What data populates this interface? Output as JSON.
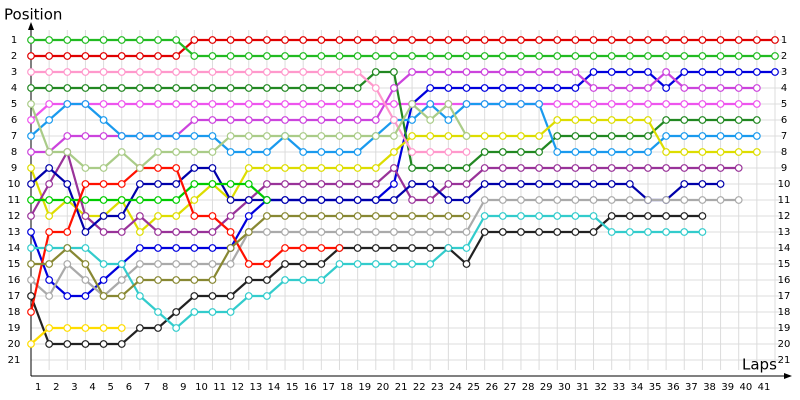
{
  "chart_data": {
    "type": "lap-chart",
    "ylabel": "Position",
    "xlabel": "Laps",
    "categories": [
      null,
      "1",
      "2",
      "3",
      "4",
      "5",
      "6",
      "7",
      "8",
      "9",
      "10",
      "11",
      "12",
      "13",
      "14",
      "15",
      "16",
      "17",
      "18",
      "19",
      "20",
      "21",
      "22",
      "23",
      "24",
      "25",
      "26",
      "27",
      "28",
      "29",
      "30",
      "31",
      "32",
      "33",
      "34",
      "35",
      "36",
      "37",
      "38",
      "39",
      "40",
      "41"
    ],
    "ylim": [
      1,
      21
    ],
    "invert_y": true,
    "yticks": [
      1,
      2,
      3,
      4,
      5,
      6,
      7,
      8,
      9,
      10,
      11,
      12,
      13,
      14,
      15,
      16,
      17,
      18,
      19,
      20,
      21
    ],
    "grid": true,
    "series": [
      {
        "color": "#e00000",
        "values": [
          2,
          2,
          2,
          2,
          2,
          2,
          2,
          2,
          2,
          1,
          1,
          1,
          1,
          1,
          1,
          1,
          1,
          1,
          1,
          1,
          1,
          1,
          1,
          1,
          1,
          1,
          1,
          1,
          1,
          1,
          1,
          1,
          1,
          1,
          1,
          1,
          1,
          1,
          1,
          1,
          1,
          1
        ]
      },
      {
        "color": "#22bb22",
        "values": [
          1,
          1,
          1,
          1,
          1,
          1,
          1,
          1,
          1,
          2,
          2,
          2,
          2,
          2,
          2,
          2,
          2,
          2,
          2,
          2,
          2,
          2,
          2,
          2,
          2,
          2,
          2,
          2,
          2,
          2,
          2,
          2,
          2,
          2,
          2,
          2,
          2,
          2,
          2,
          2,
          2,
          2
        ]
      },
      {
        "color": "#0000dd",
        "values": [
          13,
          16,
          17,
          17,
          16,
          15,
          14,
          14,
          14,
          14,
          14,
          14,
          12,
          11,
          11,
          11,
          11,
          11,
          11,
          11,
          10,
          5,
          4,
          4,
          4,
          4,
          4,
          4,
          4,
          4,
          4,
          3,
          3,
          3,
          3,
          4,
          3,
          3,
          3,
          3,
          3,
          3
        ]
      },
      {
        "color": "#cc44dd",
        "values": [
          8,
          8,
          7,
          7,
          7,
          7,
          7,
          7,
          7,
          6,
          6,
          6,
          6,
          6,
          6,
          6,
          6,
          6,
          6,
          6,
          4,
          3,
          3,
          3,
          3,
          3,
          3,
          3,
          3,
          3,
          3,
          4,
          4,
          4,
          4,
          3,
          4,
          4,
          4,
          4,
          4,
          null
        ]
      },
      {
        "color": "#ee55ee",
        "values": [
          6,
          5,
          5,
          5,
          5,
          5,
          5,
          5,
          5,
          5,
          5,
          5,
          5,
          5,
          5,
          5,
          5,
          5,
          5,
          5,
          5,
          5,
          5,
          5,
          5,
          5,
          5,
          5,
          5,
          5,
          5,
          5,
          5,
          5,
          5,
          5,
          5,
          5,
          5,
          5,
          5,
          null
        ]
      },
      {
        "color": "#228822",
        "values": [
          4,
          4,
          4,
          4,
          4,
          4,
          4,
          4,
          4,
          4,
          4,
          4,
          4,
          4,
          4,
          4,
          4,
          4,
          4,
          3,
          3,
          9,
          9,
          9,
          9,
          8,
          8,
          8,
          8,
          7,
          7,
          7,
          7,
          7,
          7,
          6,
          6,
          6,
          6,
          6,
          6,
          null
        ]
      },
      {
        "color": "#1a9aee",
        "values": [
          7,
          6,
          5,
          5,
          6,
          7,
          7,
          7,
          7,
          7,
          7,
          8,
          8,
          8,
          7,
          8,
          8,
          8,
          8,
          7,
          6,
          6,
          5,
          6,
          5,
          5,
          5,
          5,
          5,
          8,
          8,
          8,
          8,
          8,
          8,
          7,
          7,
          7,
          7,
          7,
          7,
          null
        ]
      },
      {
        "color": "#dddd00",
        "values": [
          9,
          12,
          11,
          12,
          12,
          11,
          13,
          12,
          12,
          11,
          10,
          11,
          9,
          9,
          9,
          9,
          9,
          9,
          9,
          9,
          8,
          7,
          7,
          7,
          7,
          7,
          7,
          7,
          7,
          6,
          6,
          6,
          6,
          6,
          6,
          8,
          8,
          8,
          8,
          8,
          8,
          null
        ]
      },
      {
        "color": "#993399",
        "values": [
          12,
          10,
          8,
          12,
          13,
          13,
          12,
          13,
          13,
          13,
          13,
          12,
          11,
          10,
          10,
          10,
          10,
          10,
          10,
          10,
          9,
          11,
          11,
          10,
          10,
          9,
          9,
          9,
          9,
          9,
          9,
          9,
          9,
          9,
          9,
          9,
          9,
          9,
          9,
          9,
          null,
          null
        ]
      },
      {
        "color": "#0000aa",
        "values": [
          10,
          9,
          10,
          13,
          12,
          12,
          10,
          10,
          10,
          9,
          9,
          11,
          11,
          11,
          11,
          11,
          11,
          11,
          11,
          11,
          11,
          10,
          10,
          11,
          11,
          10,
          10,
          10,
          10,
          10,
          10,
          10,
          10,
          10,
          11,
          11,
          10,
          10,
          10,
          null,
          null,
          null
        ]
      },
      {
        "color": "#aaaaaa",
        "values": [
          16,
          17,
          15,
          16,
          17,
          16,
          15,
          15,
          15,
          15,
          15,
          15,
          13,
          13,
          13,
          13,
          13,
          13,
          13,
          13,
          13,
          13,
          13,
          13,
          13,
          11,
          11,
          11,
          11,
          11,
          11,
          11,
          11,
          11,
          11,
          11,
          11,
          11,
          11,
          11,
          null,
          null
        ]
      },
      {
        "color": "#222222",
        "values": [
          17,
          20,
          20,
          20,
          20,
          20,
          19,
          19,
          18,
          17,
          17,
          17,
          16,
          16,
          15,
          15,
          15,
          14,
          14,
          14,
          14,
          14,
          14,
          14,
          15,
          13,
          13,
          13,
          13,
          13,
          13,
          13,
          12,
          12,
          12,
          12,
          12,
          12,
          null,
          null,
          null,
          null
        ]
      },
      {
        "color": "#33cccc",
        "values": [
          14,
          14,
          14,
          14,
          15,
          15,
          17,
          18,
          19,
          18,
          18,
          18,
          17,
          17,
          16,
          16,
          16,
          15,
          15,
          15,
          15,
          15,
          15,
          14,
          14,
          12,
          12,
          12,
          12,
          12,
          12,
          12,
          13,
          13,
          13,
          13,
          13,
          13,
          null,
          null,
          null,
          null
        ]
      },
      {
        "color": "#00cc00",
        "values": [
          11,
          11,
          11,
          11,
          11,
          11,
          11,
          11,
          11,
          10,
          10,
          10,
          10,
          11,
          null,
          null,
          null,
          null,
          null,
          null,
          null,
          null,
          null,
          null,
          null,
          null,
          null,
          null,
          null,
          null,
          null,
          null,
          null,
          null,
          null,
          null,
          null,
          null,
          null,
          null,
          null,
          null
        ]
      },
      {
        "color": "#ff1100",
        "values": [
          18,
          13,
          13,
          10,
          10,
          10,
          9,
          9,
          9,
          12,
          12,
          13,
          15,
          15,
          14,
          14,
          14,
          14,
          null,
          null,
          null,
          null,
          null,
          null,
          null,
          null,
          null,
          null,
          null,
          null,
          null,
          null,
          null,
          null,
          null,
          null,
          null,
          null,
          null,
          null,
          null,
          null
        ]
      },
      {
        "color": "#888833",
        "values": [
          15,
          15,
          14,
          15,
          17,
          17,
          16,
          16,
          16,
          16,
          16,
          14,
          13,
          12,
          12,
          12,
          12,
          12,
          12,
          12,
          12,
          12,
          12,
          12,
          12,
          null,
          null,
          null,
          null,
          null,
          null,
          null,
          null,
          null,
          null,
          null,
          null,
          null,
          null,
          null,
          null,
          null
        ]
      },
      {
        "color": "#ff99cc",
        "values": [
          3,
          3,
          3,
          3,
          3,
          3,
          3,
          3,
          3,
          3,
          3,
          3,
          3,
          3,
          3,
          3,
          3,
          3,
          3,
          4,
          6,
          8,
          8,
          8,
          8,
          null,
          null,
          null,
          null,
          null,
          null,
          null,
          null,
          null,
          null,
          null,
          null,
          null,
          null,
          null,
          null,
          null
        ]
      },
      {
        "color": "#aacc88",
        "values": [
          5,
          8,
          8,
          9,
          9,
          8,
          9,
          8,
          8,
          8,
          8,
          7,
          7,
          7,
          7,
          7,
          7,
          7,
          7,
          7,
          7,
          5,
          6,
          5,
          7,
          null,
          null,
          null,
          null,
          null,
          null,
          null,
          null,
          null,
          null,
          null,
          null,
          null,
          null,
          null,
          null,
          null
        ]
      },
      {
        "color": "#ffdd00",
        "values": [
          20,
          19,
          19,
          19,
          19,
          19,
          null,
          null,
          null,
          null,
          null,
          null,
          null,
          null,
          null,
          null,
          null,
          null,
          null,
          null,
          null,
          null,
          null,
          null,
          null,
          null,
          null,
          null,
          null,
          null,
          null,
          null,
          null,
          null,
          null,
          null,
          null,
          null,
          null,
          null,
          null,
          null
        ]
      }
    ]
  }
}
